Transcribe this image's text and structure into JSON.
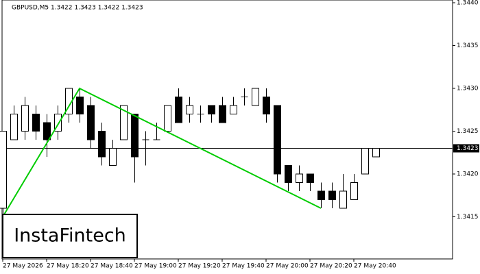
{
  "chart_data": {
    "type": "candlestick",
    "title": "GBPUSD,M5  1.3422 1.3423 1.3422 1.3423",
    "logo": "InstaFintech",
    "categories": [
      "27 May 2026",
      null,
      null,
      null,
      "27 May 18:20",
      null,
      null,
      null,
      "27 May 18:40",
      null,
      null,
      null,
      "27 May 19:00",
      null,
      null,
      null,
      "27 May 19:20",
      null,
      null,
      null,
      "27 May 19:40",
      null,
      null,
      null,
      "27 May 20:00",
      null,
      null,
      null,
      "27 May 20:20",
      null,
      null,
      null,
      "27 May 20:40",
      null,
      null
    ],
    "open": [
      1.3416,
      1.3424,
      1.3425,
      1.3427,
      1.3426,
      1.3425,
      1.3427,
      1.3429,
      1.3428,
      1.3425,
      1.3421,
      1.3424,
      1.3427,
      1.3424,
      1.3424,
      1.3425,
      1.3429,
      1.3427,
      1.3427,
      1.3428,
      1.3428,
      1.3427,
      1.3429,
      1.3428,
      1.3429,
      1.3428,
      1.3421,
      1.3419,
      1.342,
      1.3418,
      1.3418,
      1.3416,
      1.3417,
      1.342,
      1.3422
    ],
    "high": [
      1.3425,
      1.3428,
      1.3429,
      1.3428,
      1.3427,
      1.3428,
      1.343,
      1.343,
      1.3429,
      1.3426,
      1.3424,
      1.3428,
      1.3427,
      1.3425,
      1.3426,
      1.3428,
      1.343,
      1.3429,
      1.3428,
      1.3428,
      1.3429,
      1.3429,
      1.343,
      1.343,
      1.343,
      1.3428,
      1.3421,
      1.3421,
      1.342,
      1.3419,
      1.3419,
      1.342,
      1.342,
      1.3423,
      1.3423
    ],
    "low": [
      1.3415,
      1.3424,
      1.3424,
      1.3424,
      1.3422,
      1.3424,
      1.3426,
      1.3426,
      1.3423,
      1.3421,
      1.3421,
      1.3424,
      1.3419,
      1.3421,
      1.3424,
      1.3425,
      1.3426,
      1.3426,
      1.3426,
      1.3426,
      1.3426,
      1.3427,
      1.3428,
      1.3428,
      1.3426,
      1.3419,
      1.3418,
      1.3418,
      1.3418,
      1.3416,
      1.3416,
      1.3416,
      1.3417,
      1.342,
      1.3422
    ],
    "close": [
      1.3425,
      1.3427,
      1.3428,
      1.3425,
      1.3424,
      1.3427,
      1.343,
      1.3427,
      1.3424,
      1.3422,
      1.3423,
      1.3428,
      1.3422,
      1.3424,
      1.3424,
      1.3428,
      1.3426,
      1.3428,
      1.3427,
      1.3427,
      1.3426,
      1.3428,
      1.3429,
      1.343,
      1.3427,
      1.342,
      1.3419,
      1.342,
      1.3419,
      1.3417,
      1.3417,
      1.3418,
      1.3419,
      1.3423,
      1.3423
    ],
    "ylim": [
      1.341,
      1.344
    ],
    "yticks": [
      1.3415,
      {
        "value": 1.342,
        "label": "1.3420"
      },
      1.3425,
      {
        "value": 1.343,
        "label": "1.3430"
      },
      1.3435,
      {
        "value": 1.344,
        "label": "1.3440"
      }
    ],
    "current_price": 1.3423,
    "pattern_line": {
      "color": "#00cc00",
      "points": [
        [
          0,
          1.3415
        ],
        [
          7,
          1.343
        ],
        [
          29,
          1.3416
        ]
      ]
    }
  }
}
